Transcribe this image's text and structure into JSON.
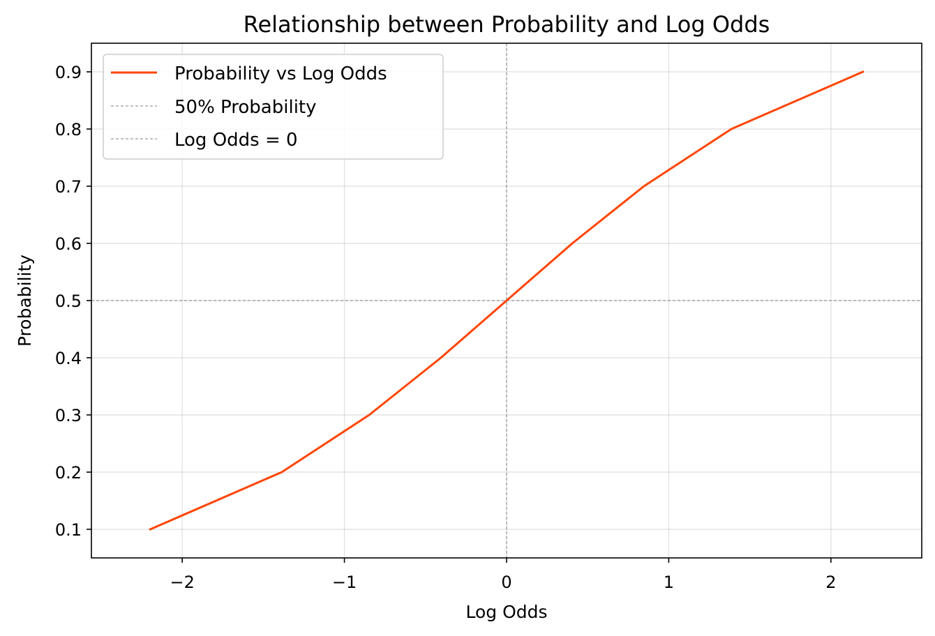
{
  "chart_data": {
    "type": "line",
    "title": "Relationship between Probability and Log Odds",
    "xlabel": "Log Odds",
    "ylabel": "Probability",
    "xlim": [
      -2.56,
      2.56
    ],
    "ylim": [
      0.05,
      0.95
    ],
    "xticks": [
      -2,
      -1,
      0,
      1,
      2
    ],
    "xtick_labels": [
      "−2",
      "−1",
      "0",
      "1",
      "2"
    ],
    "yticks": [
      0.1,
      0.2,
      0.3,
      0.4,
      0.5,
      0.6,
      0.7,
      0.8,
      0.9
    ],
    "ytick_labels": [
      "0.1",
      "0.2",
      "0.3",
      "0.4",
      "0.5",
      "0.6",
      "0.7",
      "0.8",
      "0.9"
    ],
    "grid": true,
    "legend_position": "top-left",
    "series": [
      {
        "name": "Probability vs Log Odds",
        "color": "#ff4500",
        "style": "solid",
        "x": [
          -2.197,
          -1.386,
          -0.847,
          -0.405,
          0.0,
          0.405,
          0.847,
          1.386,
          2.197
        ],
        "y": [
          0.1,
          0.2,
          0.3,
          0.4,
          0.5,
          0.6,
          0.7,
          0.8,
          0.9
        ]
      }
    ],
    "reference_lines": [
      {
        "name": "50% Probability",
        "orientation": "horizontal",
        "value": 0.5,
        "color": "#808080",
        "style": "dashed"
      },
      {
        "name": "Log Odds = 0",
        "orientation": "vertical",
        "value": 0,
        "color": "#808080",
        "style": "dashed"
      }
    ]
  }
}
